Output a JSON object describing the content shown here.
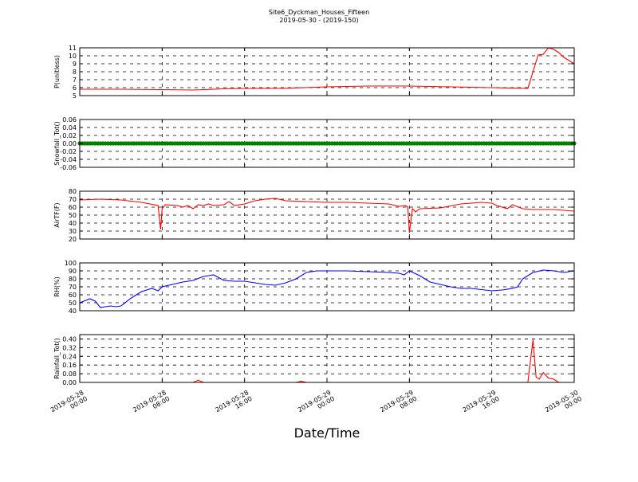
{
  "figure": {
    "title": "Site6_Dyckman_Houses_Fifteen",
    "subtitle": "2019-05-30 - (2019-150)",
    "xlabel": "Date/Time"
  },
  "chart_data": {
    "type": "line",
    "x_axis": {
      "start": "2019-05-28 00:00",
      "end": "2019-05-30 00:00",
      "ticks": [
        "2019-05-28 00:00",
        "2019-05-28 08:00",
        "2019-05-28 16:00",
        "2019-05-29 00:00",
        "2019-05-29 08:00",
        "2019-05-29 16:00",
        "2019-05-30 00:00"
      ]
    },
    "grid": true,
    "panels": [
      {
        "ylabel": "P(unitless)",
        "ylim": [
          5,
          11
        ],
        "yticks": [
          "5",
          "6",
          "7",
          "8",
          "9",
          "10",
          "11"
        ],
        "series": [
          {
            "color": "#ff0000",
            "marker": "none",
            "x_hours": [
              0,
              4,
              8,
              11,
              14,
              16,
              20,
              24,
              28,
              32,
              36,
              40,
              43.5,
              44.5,
              45,
              45.5,
              46,
              46.5,
              47,
              48
            ],
            "values": [
              5.8,
              5.8,
              5.75,
              5.7,
              5.85,
              5.9,
              5.92,
              6.1,
              6.2,
              6.2,
              6.1,
              6.0,
              5.9,
              10.1,
              10.2,
              11.0,
              10.8,
              10.4,
              9.8,
              9.0
            ]
          }
        ]
      },
      {
        "ylabel": "Snowfall_Tot()",
        "ylim": [
          -0.06,
          0.06
        ],
        "yticks": [
          "-0.06",
          "-0.04",
          "-0.02",
          "0.00",
          "0.02",
          "0.04",
          "0.06"
        ],
        "series": [
          {
            "color": "#008000",
            "marker": "dot",
            "x_hours": [
              0,
              48
            ],
            "values": [
              0.0,
              0.0
            ]
          }
        ]
      },
      {
        "ylabel": "AirTF(F)",
        "ylim": [
          20,
          80
        ],
        "yticks": [
          "20",
          "30",
          "40",
          "50",
          "60",
          "70",
          "80"
        ],
        "series": [
          {
            "color": "#ff0000",
            "marker": "none",
            "x_hours": [
              0,
              2,
              4,
              6,
              7.6,
              7.85,
              8.0,
              8.3,
              9.5,
              10,
              10.5,
              11,
              11.5,
              12,
              12.5,
              13,
              14,
              14.5,
              15,
              16,
              17,
              18,
              19,
              20,
              22,
              24,
              26,
              28,
              30,
              31.0,
              31.6,
              31.85,
              32.0,
              32.3,
              32.6,
              33,
              35,
              37,
              39,
              40,
              40.5,
              41,
              41.5,
              42,
              43,
              44,
              46,
              48
            ],
            "values": [
              69,
              70,
              69,
              66,
              62,
              32,
              58,
              63,
              62,
              60,
              62,
              58,
              63,
              62,
              64,
              62,
              63,
              67,
              62,
              64,
              68,
              70,
              71,
              68,
              67,
              66,
              66,
              65,
              64,
              61,
              62,
              60,
              28,
              58,
              54,
              58,
              59,
              64,
              66,
              65,
              62,
              60,
              58,
              63,
              58,
              57,
              57,
              55
            ]
          }
        ]
      },
      {
        "ylabel": "RH(%)",
        "ylim": [
          40,
          100
        ],
        "yticks": [
          "40",
          "50",
          "60",
          "70",
          "80",
          "90",
          "100"
        ],
        "series": [
          {
            "color": "#0000ff",
            "marker": "none",
            "x_hours": [
              0,
              1,
              1.5,
              2,
              2.5,
              3,
              3.5,
              4,
              5,
              6,
              7,
              7.6,
              8,
              9,
              10,
              11,
              12,
              12.5,
              13,
              14,
              15,
              16,
              17,
              18,
              19,
              20,
              21,
              22,
              23,
              24,
              26,
              28,
              30,
              31,
              31.5,
              32,
              33,
              34,
              35,
              36,
              37,
              38,
              40,
              41,
              42,
              42.5,
              43,
              44,
              45,
              46,
              47,
              48
            ],
            "values": [
              50,
              55,
              52,
              44,
              45,
              46,
              45,
              46,
              56,
              64,
              68,
              65,
              70,
              73,
              76,
              78,
              83,
              84,
              85,
              78,
              77,
              77,
              75,
              73,
              72,
              75,
              80,
              88,
              90,
              90,
              90,
              89,
              88,
              87,
              85,
              90,
              84,
              76,
              73,
              70,
              68,
              68,
              65,
              66,
              68,
              70,
              80,
              88,
              91,
              90,
              88,
              90
            ]
          }
        ]
      },
      {
        "ylabel": "Rainfall_Tot()",
        "ylim": [
          0,
          0.44
        ],
        "yticks": [
          "0.00",
          "0.08",
          "0.16",
          "0.24",
          "0.32",
          "0.40"
        ],
        "series": [
          {
            "color": "#ff0000",
            "marker": "none",
            "x_hours": [
              0,
              11,
              11.5,
              12,
              12.5,
              21,
              21.5,
              22,
              43.5,
              44.0,
              44.3,
              44.6,
              45.0,
              45.5,
              46,
              46.5,
              47,
              48
            ],
            "values": [
              0.0,
              0.0,
              0.02,
              0.0,
              0.0,
              0.0,
              0.01,
              0.0,
              0.0,
              0.39,
              0.05,
              0.03,
              0.09,
              0.04,
              0.03,
              0.0,
              0.0,
              0.0
            ]
          }
        ]
      }
    ]
  }
}
